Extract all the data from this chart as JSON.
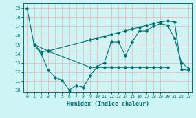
{
  "background_color": "#cef5f5",
  "grid_color": "#f0b0b0",
  "line_color": "#007070",
  "xlabel": "Humidex (Indice chaleur)",
  "xlim": [
    -0.5,
    23.5
  ],
  "ylim": [
    9.8,
    19.5
  ],
  "yticks": [
    10,
    11,
    12,
    13,
    14,
    15,
    16,
    17,
    18,
    19
  ],
  "xticks": [
    0,
    1,
    2,
    3,
    4,
    5,
    6,
    7,
    8,
    9,
    10,
    11,
    12,
    13,
    14,
    15,
    16,
    17,
    18,
    19,
    20,
    21,
    22,
    23
  ],
  "line1_x": [
    0,
    1,
    2,
    3,
    4,
    5,
    6,
    7,
    8,
    9,
    10,
    11,
    12,
    13,
    14,
    15,
    16,
    17,
    18,
    19,
    20,
    21,
    22,
    23
  ],
  "line1_y": [
    19.0,
    15.0,
    14.0,
    12.2,
    11.4,
    11.1,
    10.0,
    10.5,
    10.3,
    11.6,
    12.6,
    13.0,
    15.3,
    15.3,
    13.8,
    15.3,
    16.5,
    16.5,
    17.0,
    17.3,
    17.1,
    15.7,
    13.0,
    12.4
  ],
  "line2_x": [
    1,
    3,
    9,
    10,
    11,
    12,
    13,
    14,
    15,
    16,
    17,
    18,
    19,
    20
  ],
  "line2_y": [
    15.0,
    14.3,
    12.5,
    12.5,
    12.5,
    12.5,
    12.5,
    12.5,
    12.5,
    12.5,
    12.5,
    12.5,
    12.5,
    12.5
  ],
  "line3_x": [
    1,
    2,
    3,
    9,
    10,
    11,
    12,
    13,
    14,
    15,
    16,
    17,
    18,
    19,
    20,
    21,
    22,
    23
  ],
  "line3_y": [
    15.0,
    14.2,
    14.3,
    15.5,
    15.7,
    15.9,
    16.1,
    16.3,
    16.5,
    16.7,
    16.9,
    17.1,
    17.3,
    17.5,
    17.6,
    17.5,
    12.3,
    12.2
  ]
}
